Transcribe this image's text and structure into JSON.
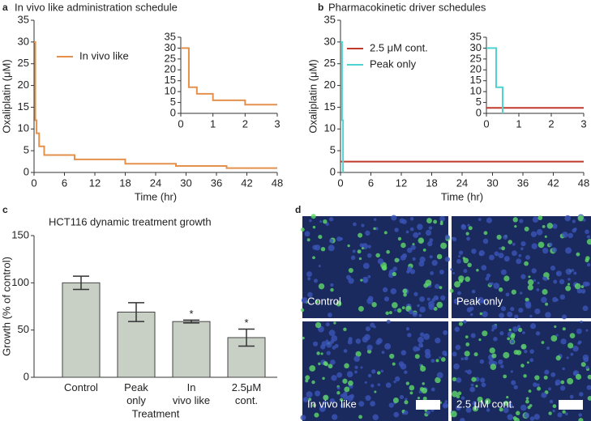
{
  "panel_labels": [
    "a",
    "b",
    "c",
    "d"
  ],
  "chart_data": [
    {
      "type": "line",
      "title": "In vivo like administration schedule",
      "xlabel": "Time (hr)",
      "ylabel": "Oxaliplatin (μM)",
      "xlim": [
        0,
        48
      ],
      "xticks": [
        0,
        6,
        12,
        18,
        24,
        30,
        36,
        42,
        48
      ],
      "ylim": [
        0,
        35
      ],
      "yticks": [
        0,
        5,
        10,
        15,
        20,
        25,
        30,
        35
      ],
      "legend": true,
      "series": [
        {
          "name": "In vivo like",
          "color": "#e3914d",
          "x": [
            0,
            0.25,
            0.25,
            0.5,
            0.5,
            1,
            1,
            2,
            2,
            8,
            8,
            18,
            18,
            28,
            28,
            38,
            38,
            48
          ],
          "values": [
            30,
            30,
            12,
            12,
            9,
            9,
            6,
            6,
            4,
            4,
            3,
            3,
            2,
            2,
            1.5,
            1.5,
            1,
            1
          ]
        }
      ]
    },
    {
      "type": "line",
      "xlim": [
        0,
        3
      ],
      "xticks": [
        0,
        1,
        2,
        3
      ],
      "ylim": [
        0,
        35
      ],
      "yticks": [
        0,
        5,
        10,
        15,
        20,
        25,
        30,
        35
      ],
      "legend": false,
      "series": [
        {
          "color": "#e3914d",
          "x": [
            0,
            0.25,
            0.25,
            0.5,
            0.5,
            1,
            1,
            2,
            2,
            3
          ],
          "values": [
            30,
            30,
            12,
            12,
            9,
            9,
            6,
            6,
            4,
            4
          ]
        }
      ]
    },
    {
      "type": "line",
      "title": "Pharmacokinetic driver schedules",
      "xlabel": "Time (hr)",
      "ylabel": "Oxaliplatin (μM)",
      "xlim": [
        0,
        48
      ],
      "xticks": [
        0,
        6,
        12,
        18,
        24,
        30,
        36,
        42,
        48
      ],
      "ylim": [
        0,
        35
      ],
      "yticks": [
        0,
        5,
        10,
        15,
        20,
        25,
        30,
        35
      ],
      "legend": true,
      "series": [
        {
          "name": "2.5 μM cont.",
          "color": "#c0392b",
          "x": [
            0,
            48
          ],
          "values": [
            2.5,
            2.5
          ]
        },
        {
          "name": "Peak only",
          "color": "#4fd3d0",
          "x": [
            0,
            0.3,
            0.3,
            0.5,
            0.5
          ],
          "values": [
            30,
            30,
            12,
            12,
            0
          ]
        }
      ]
    },
    {
      "type": "line",
      "xlim": [
        0,
        3
      ],
      "xticks": [
        0,
        1,
        2,
        3
      ],
      "ylim": [
        0,
        35
      ],
      "yticks": [
        0,
        5,
        10,
        15,
        20,
        25,
        30,
        35
      ],
      "legend": false,
      "series": [
        {
          "color": "#c0392b",
          "x": [
            0,
            3
          ],
          "values": [
            2.5,
            2.5
          ]
        },
        {
          "color": "#4fd3d0",
          "x": [
            0,
            0.3,
            0.3,
            0.5,
            0.5
          ],
          "values": [
            30,
            30,
            12,
            12,
            0
          ]
        }
      ]
    },
    {
      "type": "bar",
      "title": "HCT116 dynamic treatment growth",
      "xlabel": "Treatment",
      "ylabel": "Growth (% of control)",
      "categories": [
        "Control",
        "Peak\nonly",
        "In\nvivo like",
        "2.5μM\ncont."
      ],
      "values": [
        100,
        69,
        59,
        42
      ],
      "errors": [
        7,
        10,
        1.5,
        9
      ],
      "value_labels": [
        null,
        null,
        "*",
        "*"
      ],
      "color": "#c8d0c6",
      "ylim": [
        0,
        150
      ],
      "yticks": [
        0,
        50,
        100,
        150
      ]
    }
  ],
  "image_panel": {
    "labels": [
      "Control",
      "Peak only",
      "In vivo like",
      "2.5 μM cont."
    ]
  }
}
